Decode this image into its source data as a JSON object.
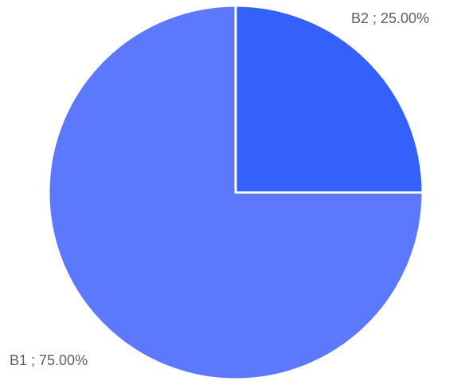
{
  "chart_data": {
    "type": "pie",
    "slices": [
      {
        "label": "B1",
        "value": 75.0,
        "display": "B1 ; 75.00%",
        "color": "#5c79fd"
      },
      {
        "label": "B2",
        "value": 25.0,
        "display": "B2 ; 25.00%",
        "color": "#3460fb"
      }
    ],
    "title": "",
    "legend": "none"
  }
}
